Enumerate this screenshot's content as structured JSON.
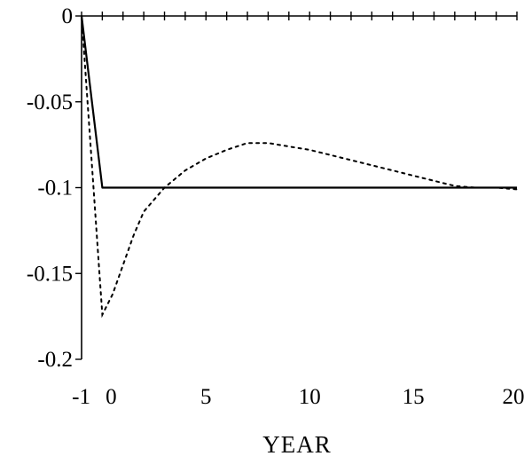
{
  "chart_data": {
    "type": "line",
    "xlabel": "YEAR",
    "ylabel": "",
    "title": "",
    "xlim": [
      -1,
      20
    ],
    "ylim": [
      -0.2,
      0
    ],
    "x_tick_labels": [
      {
        "value": -1,
        "label": "-1"
      },
      {
        "value": 0,
        "label": "0"
      },
      {
        "value": 5,
        "label": "5"
      },
      {
        "value": 10,
        "label": "10"
      },
      {
        "value": 15,
        "label": "15"
      },
      {
        "value": 20,
        "label": "20"
      }
    ],
    "y_tick_labels": [
      {
        "value": 0,
        "label": "0"
      },
      {
        "value": -0.05,
        "label": "-0.05"
      },
      {
        "value": -0.1,
        "label": "-0.1"
      },
      {
        "value": -0.15,
        "label": "-0.15"
      },
      {
        "value": -0.2,
        "label": "-0.2"
      }
    ],
    "grid": false,
    "series": [
      {
        "style": "solid",
        "x": [
          -1,
          0,
          20
        ],
        "y": [
          0,
          -0.1,
          -0.1
        ]
      },
      {
        "style": "dotted",
        "x": [
          -1,
          0,
          0.5,
          1,
          1.5,
          2,
          3,
          4,
          5,
          6,
          7,
          8,
          9,
          10,
          11,
          12,
          13,
          14,
          15,
          16,
          17,
          18,
          19,
          20
        ],
        "y": [
          0,
          -0.174,
          -0.162,
          -0.145,
          -0.128,
          -0.114,
          -0.1,
          -0.09,
          -0.083,
          -0.078,
          -0.074,
          -0.074,
          -0.076,
          -0.078,
          -0.081,
          -0.084,
          -0.087,
          -0.09,
          -0.093,
          -0.096,
          -0.099,
          -0.1,
          -0.1,
          -0.101
        ]
      }
    ]
  }
}
